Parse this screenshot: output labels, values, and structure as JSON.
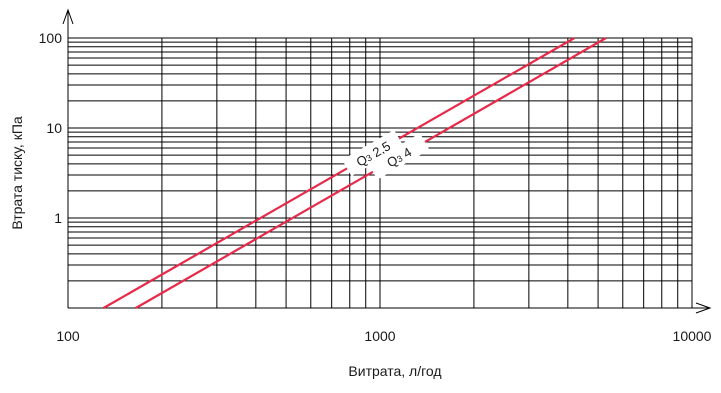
{
  "chart_data": {
    "type": "line",
    "xscale": "log",
    "yscale": "log",
    "xlim": [
      100,
      10000
    ],
    "ylim": [
      0.1,
      100
    ],
    "xlabel": "Витрата, л/год",
    "ylabel": "Втрата тиску, кПа",
    "xticks": [
      {
        "value": 100,
        "label": "100"
      },
      {
        "value": 1000,
        "label": "1000"
      },
      {
        "value": 10000,
        "label": "10000"
      }
    ],
    "yticks": [
      {
        "value": 1,
        "label": "1"
      },
      {
        "value": 10,
        "label": "10"
      },
      {
        "value": 100,
        "label": "100"
      }
    ],
    "grid": true,
    "series": [
      {
        "name": "Q3 2,5",
        "label_main": "Q",
        "label_sub": "3",
        "label_rest": " 2,5",
        "label_at_x": 950,
        "x": [
          130,
          4200
        ],
        "y": [
          0.1,
          100
        ]
      },
      {
        "name": "Q3 4",
        "label_main": "Q",
        "label_sub": "3",
        "label_rest": " 4",
        "label_at_x": 1150,
        "x": [
          165,
          5300
        ],
        "y": [
          0.1,
          100
        ]
      }
    ],
    "colors": {
      "series": "#e8294a",
      "grid": "#000000",
      "text": "#1a1a1a"
    }
  }
}
